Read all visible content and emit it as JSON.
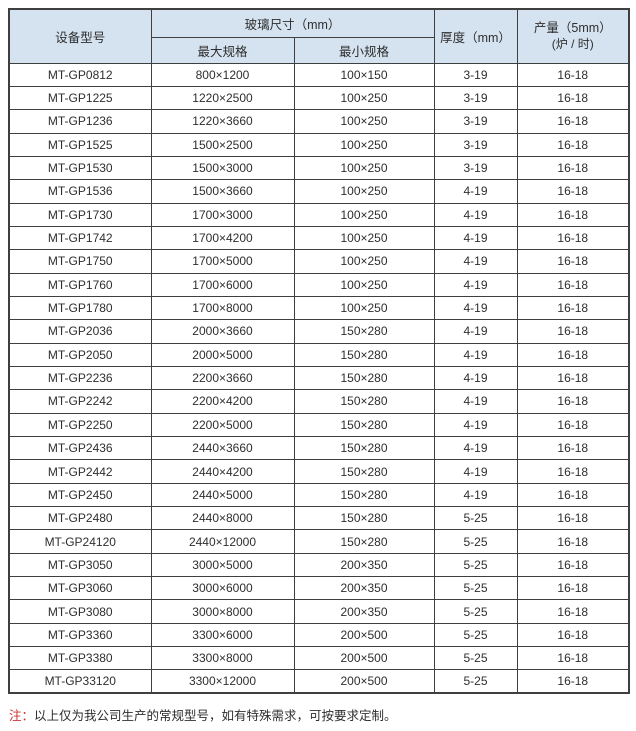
{
  "colors": {
    "header_bg": "#d5e3f0",
    "border": "#3f3f3f",
    "text": "#2e2e2e",
    "note_red": "#cc3333"
  },
  "table": {
    "header": {
      "model": "设备型号",
      "glass_size_group": "玻璃尺寸（mm）",
      "max_spec": "最大规格",
      "min_spec": "最小规格",
      "thickness": "厚度（mm）",
      "output_line1": "产量（5mm）",
      "output_line2": "(炉 / 时)"
    },
    "rows": [
      {
        "model": "MT-GP0812",
        "max": "800×1200",
        "min": "100×150",
        "thickness": "3-19",
        "output": "16-18"
      },
      {
        "model": "MT-GP1225",
        "max": "1220×2500",
        "min": "100×250",
        "thickness": "3-19",
        "output": "16-18"
      },
      {
        "model": "MT-GP1236",
        "max": "1220×3660",
        "min": "100×250",
        "thickness": "3-19",
        "output": "16-18"
      },
      {
        "model": "MT-GP1525",
        "max": "1500×2500",
        "min": "100×250",
        "thickness": "3-19",
        "output": "16-18"
      },
      {
        "model": "MT-GP1530",
        "max": "1500×3000",
        "min": "100×250",
        "thickness": "3-19",
        "output": "16-18"
      },
      {
        "model": "MT-GP1536",
        "max": "1500×3660",
        "min": "100×250",
        "thickness": "4-19",
        "output": "16-18"
      },
      {
        "model": "MT-GP1730",
        "max": "1700×3000",
        "min": "100×250",
        "thickness": "4-19",
        "output": "16-18"
      },
      {
        "model": "MT-GP1742",
        "max": "1700×4200",
        "min": "100×250",
        "thickness": "4-19",
        "output": "16-18"
      },
      {
        "model": "MT-GP1750",
        "max": "1700×5000",
        "min": "100×250",
        "thickness": "4-19",
        "output": "16-18"
      },
      {
        "model": "MT-GP1760",
        "max": "1700×6000",
        "min": "100×250",
        "thickness": "4-19",
        "output": "16-18"
      },
      {
        "model": "MT-GP1780",
        "max": "1700×8000",
        "min": "100×250",
        "thickness": "4-19",
        "output": "16-18"
      },
      {
        "model": "MT-GP2036",
        "max": "2000×3660",
        "min": "150×280",
        "thickness": "4-19",
        "output": "16-18"
      },
      {
        "model": "MT-GP2050",
        "max": "2000×5000",
        "min": "150×280",
        "thickness": "4-19",
        "output": "16-18"
      },
      {
        "model": "MT-GP2236",
        "max": "2200×3660",
        "min": "150×280",
        "thickness": "4-19",
        "output": "16-18"
      },
      {
        "model": "MT-GP2242",
        "max": "2200×4200",
        "min": "150×280",
        "thickness": "4-19",
        "output": "16-18"
      },
      {
        "model": "MT-GP2250",
        "max": "2200×5000",
        "min": "150×280",
        "thickness": "4-19",
        "output": "16-18"
      },
      {
        "model": "MT-GP2436",
        "max": "2440×3660",
        "min": "150×280",
        "thickness": "4-19",
        "output": "16-18"
      },
      {
        "model": "MT-GP2442",
        "max": "2440×4200",
        "min": "150×280",
        "thickness": "4-19",
        "output": "16-18"
      },
      {
        "model": "MT-GP2450",
        "max": "2440×5000",
        "min": "150×280",
        "thickness": "4-19",
        "output": "16-18"
      },
      {
        "model": "MT-GP2480",
        "max": "2440×8000",
        "min": "150×280",
        "thickness": "5-25",
        "output": "16-18"
      },
      {
        "model": "MT-GP24120",
        "max": "2440×12000",
        "min": "150×280",
        "thickness": "5-25",
        "output": "16-18"
      },
      {
        "model": "MT-GP3050",
        "max": "3000×5000",
        "min": "200×350",
        "thickness": "5-25",
        "output": "16-18"
      },
      {
        "model": "MT-GP3060",
        "max": "3000×6000",
        "min": "200×350",
        "thickness": "5-25",
        "output": "16-18"
      },
      {
        "model": "MT-GP3080",
        "max": "3000×8000",
        "min": "200×350",
        "thickness": "5-25",
        "output": "16-18"
      },
      {
        "model": "MT-GP3360",
        "max": "3300×6000",
        "min": "200×500",
        "thickness": "5-25",
        "output": "16-18"
      },
      {
        "model": "MT-GP3380",
        "max": "3300×8000",
        "min": "200×500",
        "thickness": "5-25",
        "output": "16-18"
      },
      {
        "model": "MT-GP33120",
        "max": "3300×12000",
        "min": "200×500",
        "thickness": "5-25",
        "output": "16-18"
      }
    ]
  },
  "note": {
    "prefix": "注：",
    "text": "以上仅为我公司生产的常规型号，如有特殊需求，可按要求定制。"
  }
}
